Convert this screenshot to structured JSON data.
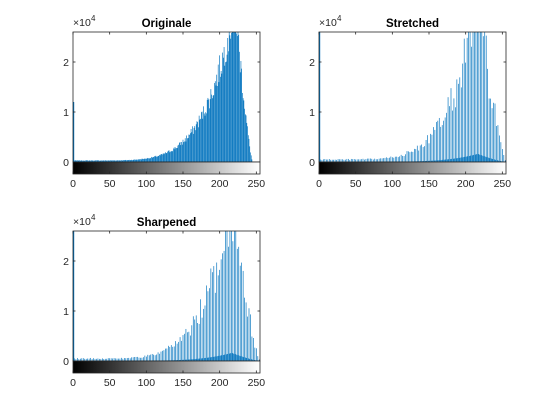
{
  "chart_data": [
    {
      "type": "histogram",
      "title": "Originale",
      "xlim": [
        0,
        255
      ],
      "ylim": [
        0,
        26000
      ],
      "y_exponent_label": "×10",
      "y_exponent_power": "4",
      "x_ticks": [
        "0",
        "50",
        "100",
        "150",
        "200",
        "250"
      ],
      "y_ticks": [
        "0",
        "1",
        "2"
      ],
      "x_tick_values": [
        0,
        50,
        100,
        150,
        200,
        250
      ],
      "y_tick_values": [
        0,
        10000,
        20000
      ],
      "color": "#0072BD",
      "colorbar": "gray 0-255",
      "profile": {
        "kind": "smooth",
        "start": 0,
        "end": 245,
        "peak_bin": 220,
        "peak_value": 26000,
        "base_value": 300,
        "left_spike": 12000,
        "shape": "rising-tail"
      }
    },
    {
      "type": "histogram",
      "title": "Stretched",
      "xlim": [
        0,
        255
      ],
      "ylim": [
        0,
        26000
      ],
      "y_exponent_label": "×10",
      "y_exponent_power": "4",
      "x_ticks": [
        "0",
        "50",
        "100",
        "150",
        "200",
        "250"
      ],
      "y_ticks": [
        "0",
        "1",
        "2"
      ],
      "x_tick_values": [
        0,
        50,
        100,
        150,
        200,
        250
      ],
      "y_tick_values": [
        0,
        10000,
        20000
      ],
      "color": "#0072BD",
      "colorbar": "gray 0-255",
      "profile": {
        "kind": "combed",
        "start": 0,
        "end": 255,
        "peak_bin": 215,
        "peak_value": 26000,
        "base_value": 500,
        "left_spike": 26000,
        "shape": "rising-tail"
      }
    },
    {
      "type": "histogram",
      "title": "Sharpened",
      "xlim": [
        0,
        255
      ],
      "ylim": [
        0,
        26000
      ],
      "y_exponent_label": "×10",
      "y_exponent_power": "4",
      "x_ticks": [
        "0",
        "50",
        "100",
        "150",
        "200",
        "250"
      ],
      "y_ticks": [
        "0",
        "1",
        "2"
      ],
      "x_tick_values": [
        0,
        50,
        100,
        150,
        200,
        250
      ],
      "y_tick_values": [
        0,
        10000,
        20000
      ],
      "color": "#0072BD",
      "colorbar": "gray 0-255",
      "profile": {
        "kind": "combed",
        "start": 0,
        "end": 255,
        "peak_bin": 215,
        "peak_value": 26000,
        "base_value": 500,
        "left_spike": 26000,
        "shape": "rising-tail"
      }
    }
  ]
}
